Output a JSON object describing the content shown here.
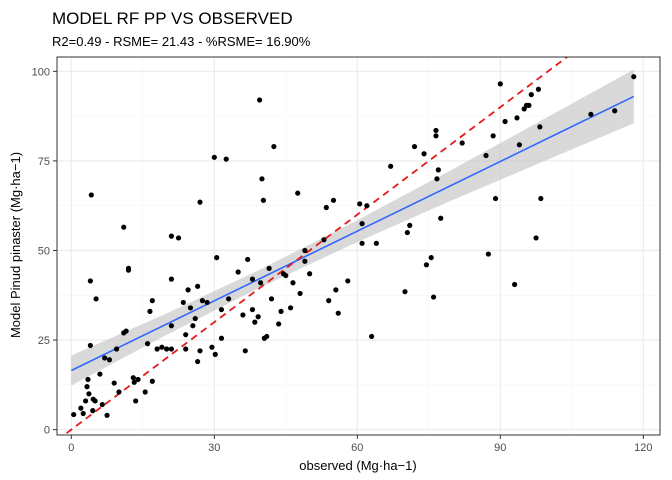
{
  "chart_data": {
    "type": "scatter",
    "title": "MODEL RF PP VS OBSERVED",
    "subtitle": "R2=0.49 - RSME= 21.43 - %RSME= 16.90%",
    "xlabel": "observed (Mg·ha−1)",
    "ylabel": "Model Pinud pinaster (Mg·ha−1)",
    "xlim": [
      -3,
      123.5
    ],
    "ylim": [
      -1.5,
      104
    ],
    "xticks": [
      0,
      30,
      60,
      90,
      120
    ],
    "yticks": [
      0,
      25,
      50,
      75,
      100
    ],
    "grid": true,
    "colors": {
      "points": "#000000",
      "fit_line": "#3366FF",
      "ribbon": "#bfbfbf",
      "identity_line": "#e41a1c",
      "grid_major": "#ebebeb",
      "grid_minor": "#f5f5f5",
      "panel_border": "#333333"
    },
    "points": [
      [
        0.5,
        4.2
      ],
      [
        2,
        6
      ],
      [
        2.5,
        4.5
      ],
      [
        3,
        8
      ],
      [
        3.3,
        12
      ],
      [
        3.5,
        14
      ],
      [
        3.7,
        10
      ],
      [
        4,
        41.5
      ],
      [
        4,
        23.5
      ],
      [
        4.2,
        65.5
      ],
      [
        4.5,
        5.3
      ],
      [
        4.6,
        8.5
      ],
      [
        5,
        8
      ],
      [
        5.2,
        36.5
      ],
      [
        6,
        15.5
      ],
      [
        6.5,
        7
      ],
      [
        7,
        20
      ],
      [
        7.5,
        4
      ],
      [
        8,
        19.5
      ],
      [
        9,
        13
      ],
      [
        9.5,
        22.5
      ],
      [
        10,
        10.5
      ],
      [
        11,
        27
      ],
      [
        11,
        56.5
      ],
      [
        11.5,
        27.5
      ],
      [
        12,
        44.5
      ],
      [
        12,
        45
      ],
      [
        13,
        14.5
      ],
      [
        13.2,
        13.2
      ],
      [
        13.5,
        8
      ],
      [
        14,
        14
      ],
      [
        15.5,
        10.5
      ],
      [
        16,
        24
      ],
      [
        16.5,
        33
      ],
      [
        17,
        36
      ],
      [
        17,
        13.5
      ],
      [
        18,
        22.5
      ],
      [
        19,
        23
      ],
      [
        20,
        22.5
      ],
      [
        21,
        29
      ],
      [
        21,
        54
      ],
      [
        21,
        42
      ],
      [
        21,
        22.5
      ],
      [
        22.5,
        53.5
      ],
      [
        23.5,
        35.5
      ],
      [
        24,
        26.5
      ],
      [
        24,
        22.5
      ],
      [
        24.5,
        39
      ],
      [
        25,
        34
      ],
      [
        25.5,
        29
      ],
      [
        26,
        31
      ],
      [
        26.5,
        40
      ],
      [
        26.5,
        19
      ],
      [
        27,
        63.5
      ],
      [
        27,
        22
      ],
      [
        27.5,
        36
      ],
      [
        28.5,
        35.5
      ],
      [
        29.5,
        23
      ],
      [
        30,
        76
      ],
      [
        30.2,
        21
      ],
      [
        30.5,
        48
      ],
      [
        31.5,
        33.5
      ],
      [
        31.5,
        25.5
      ],
      [
        32.5,
        75.5
      ],
      [
        33,
        36.5
      ],
      [
        35,
        44
      ],
      [
        36,
        32
      ],
      [
        36.5,
        22
      ],
      [
        37,
        47.5
      ],
      [
        38,
        33.5
      ],
      [
        38,
        42
      ],
      [
        38.5,
        30
      ],
      [
        39.2,
        31.5
      ],
      [
        39.5,
        92
      ],
      [
        39.7,
        41
      ],
      [
        40,
        70
      ],
      [
        40.3,
        64
      ],
      [
        40.5,
        25.5
      ],
      [
        41,
        26
      ],
      [
        41.5,
        45
      ],
      [
        42,
        36.5
      ],
      [
        42.5,
        79
      ],
      [
        43.5,
        29.5
      ],
      [
        44,
        33
      ],
      [
        44.5,
        43.5
      ],
      [
        45,
        43
      ],
      [
        46,
        34
      ],
      [
        46.5,
        41
      ],
      [
        47.5,
        66
      ],
      [
        48,
        38
      ],
      [
        49,
        50
      ],
      [
        49,
        47
      ],
      [
        50,
        43.5
      ],
      [
        53,
        53
      ],
      [
        53.5,
        62
      ],
      [
        54,
        36
      ],
      [
        55,
        64
      ],
      [
        55.5,
        39
      ],
      [
        56,
        32.5
      ],
      [
        58,
        41.5
      ],
      [
        60.5,
        63
      ],
      [
        61,
        52
      ],
      [
        61,
        57.5
      ],
      [
        62,
        62.5
      ],
      [
        63,
        26
      ],
      [
        64,
        52
      ],
      [
        67,
        73.5
      ],
      [
        70,
        38.5
      ],
      [
        70.5,
        55
      ],
      [
        71,
        57
      ],
      [
        72,
        79
      ],
      [
        74,
        77
      ],
      [
        74.5,
        46
      ],
      [
        75.5,
        48
      ],
      [
        76,
        37
      ],
      [
        76.5,
        82
      ],
      [
        76.5,
        83.5
      ],
      [
        76.7,
        70
      ],
      [
        77,
        72.5
      ],
      [
        77.5,
        59
      ],
      [
        82,
        80
      ],
      [
        87,
        76.5
      ],
      [
        87.5,
        49
      ],
      [
        88.5,
        82
      ],
      [
        89,
        64.5
      ],
      [
        90,
        96.5
      ],
      [
        91,
        86
      ],
      [
        93,
        40.5
      ],
      [
        93.5,
        87
      ],
      [
        94,
        79.5
      ],
      [
        95,
        89.5
      ],
      [
        95.5,
        90.5
      ],
      [
        96,
        90.5
      ],
      [
        96.5,
        93.5
      ],
      [
        97.5,
        53.5
      ],
      [
        98,
        95
      ],
      [
        98.3,
        84.5
      ],
      [
        98.5,
        64.5
      ],
      [
        109,
        88
      ],
      [
        114,
        89
      ],
      [
        118,
        98.5
      ]
    ],
    "fit_line": {
      "x": [
        0,
        118
      ],
      "y": [
        16.5,
        93
      ],
      "se_halfwidth": [
        4.2,
        3,
        2.5,
        3,
        4.2,
        5.8,
        7.5
      ]
    },
    "identity_line": {
      "x": [
        -1,
        104
      ],
      "y": [
        -1,
        104
      ]
    }
  }
}
